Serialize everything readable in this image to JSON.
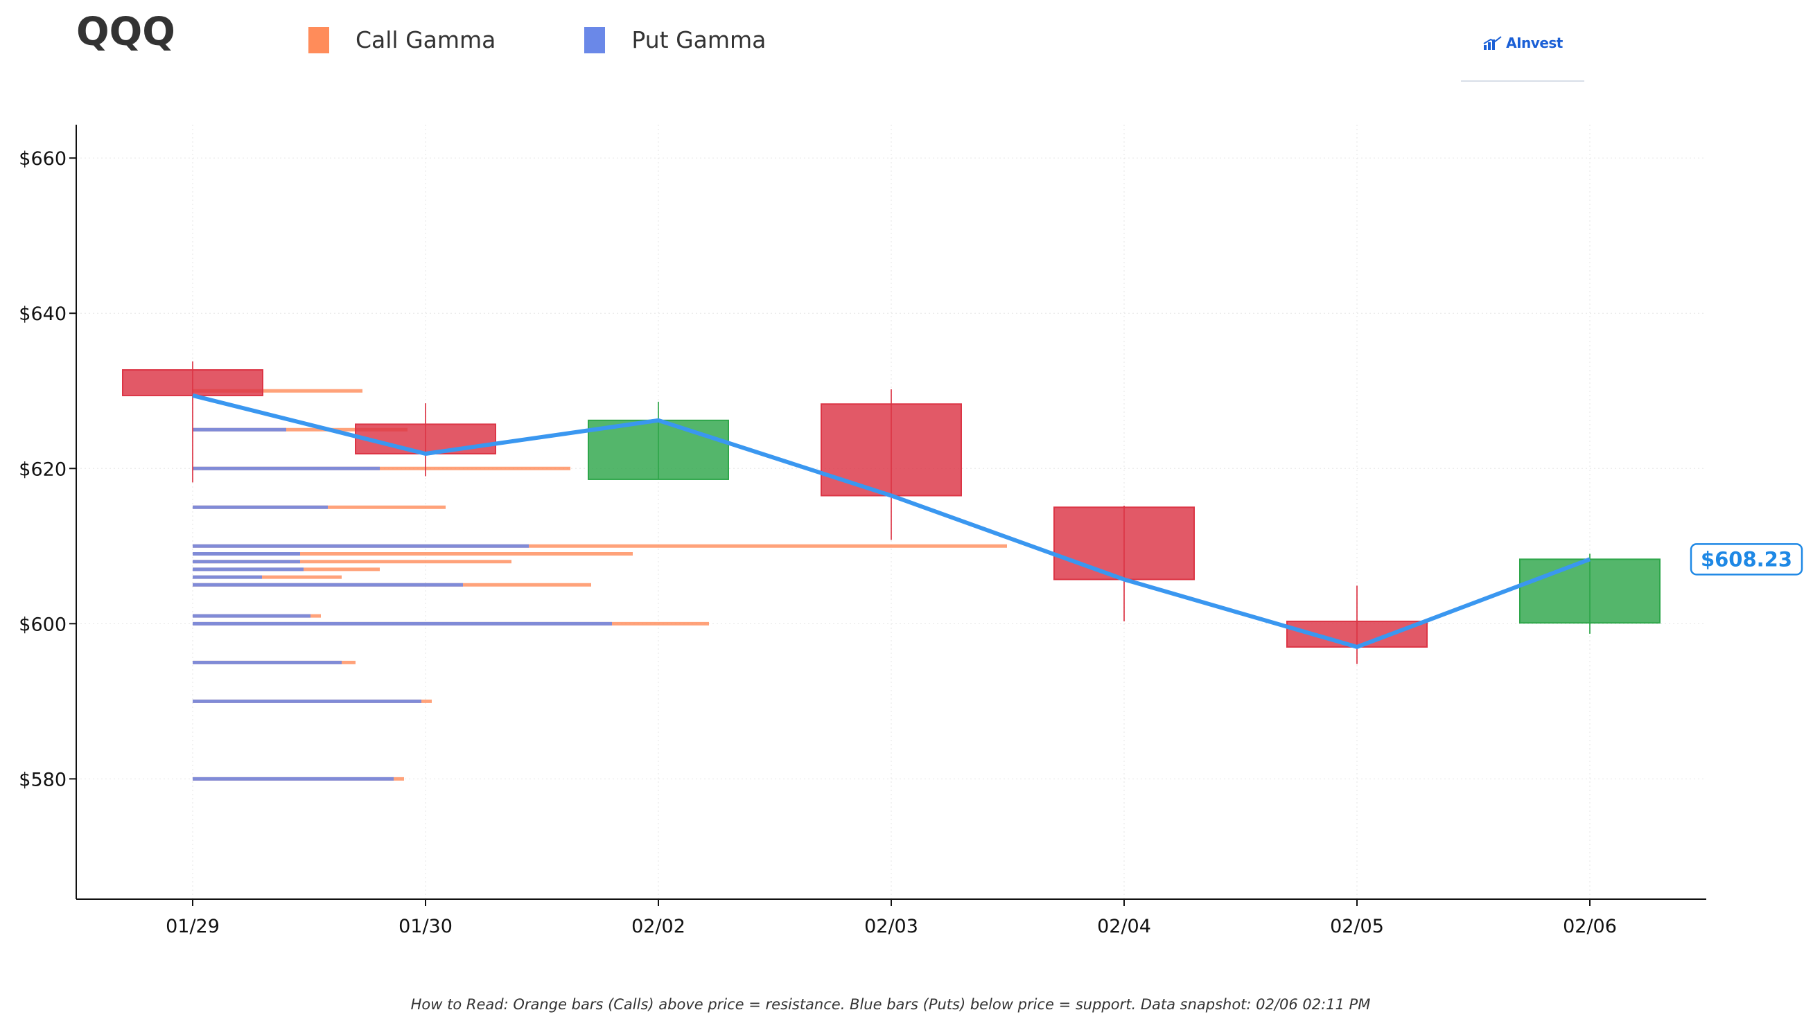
{
  "title": "QQQ",
  "legend": {
    "call_label": "Call Gamma",
    "put_label": "Put Gamma"
  },
  "brand": "AInvest",
  "footnote": "How to Read: Orange bars (Calls) above price = resistance. Blue bars (Puts) below price = support. Data snapshot: 02/06 02:11 PM",
  "colors": {
    "up": "#2ea64a",
    "down": "#dc3545",
    "call": "#ff8c5a",
    "put": "#6a88e8",
    "price_line": "#3a97f0",
    "price_label": "#1e88e5"
  },
  "chart_data": {
    "type": "candlestick",
    "categories": [
      "01/29",
      "01/30",
      "02/02",
      "02/03",
      "02/04",
      "02/05",
      "02/06"
    ],
    "ylim": [
      564.5,
      664.3
    ],
    "yticks": [
      580,
      600,
      620,
      640,
      660
    ],
    "ytick_labels": [
      "$580",
      "$600",
      "$620",
      "$640",
      "$660"
    ],
    "grid": true,
    "legend_position": "top",
    "candles": [
      {
        "date": "01/29",
        "open": 632.7,
        "close": 629.4,
        "high": 633.8,
        "low": 618.2
      },
      {
        "date": "01/30",
        "open": 625.7,
        "close": 621.9,
        "high": 628.4,
        "low": 619.0
      },
      {
        "date": "02/02",
        "open": 618.6,
        "close": 626.2,
        "high": 628.6,
        "low": 618.6
      },
      {
        "date": "02/03",
        "open": 628.3,
        "close": 616.5,
        "high": 630.2,
        "low": 610.8
      },
      {
        "date": "02/04",
        "open": 615.0,
        "close": 605.7,
        "high": 615.2,
        "low": 600.3
      },
      {
        "date": "02/05",
        "open": 600.3,
        "close": 597.0,
        "high": 604.9,
        "low": 594.8
      },
      {
        "date": "02/06",
        "open": 600.1,
        "close": 608.3,
        "high": 609.0,
        "low": 598.7
      }
    ],
    "price_line": [
      629.4,
      621.9,
      626.2,
      616.5,
      605.7,
      597.0,
      608.3
    ],
    "last_price_label": "$608.23",
    "gamma_levels": [
      {
        "strike": 630,
        "call": 2.45,
        "put": 0.0
      },
      {
        "strike": 625,
        "call": 3.1,
        "put": 1.35
      },
      {
        "strike": 620,
        "call": 5.45,
        "put": 2.7
      },
      {
        "strike": 615,
        "call": 3.65,
        "put": 1.95
      },
      {
        "strike": 610,
        "call": 11.75,
        "put": 4.85
      },
      {
        "strike": 609,
        "call": 6.35,
        "put": 1.55
      },
      {
        "strike": 608,
        "call": 4.6,
        "put": 1.55
      },
      {
        "strike": 607,
        "call": 2.7,
        "put": 1.6
      },
      {
        "strike": 606,
        "call": 2.15,
        "put": 1.0
      },
      {
        "strike": 605,
        "call": 5.75,
        "put": 3.9
      },
      {
        "strike": 601,
        "call": 1.85,
        "put": 1.7
      },
      {
        "strike": 600,
        "call": 7.45,
        "put": 6.05
      },
      {
        "strike": 595,
        "call": 2.35,
        "put": 2.15
      },
      {
        "strike": 590,
        "call": 3.45,
        "put": 3.3
      },
      {
        "strike": 580,
        "call": 3.05,
        "put": 2.9
      }
    ]
  }
}
